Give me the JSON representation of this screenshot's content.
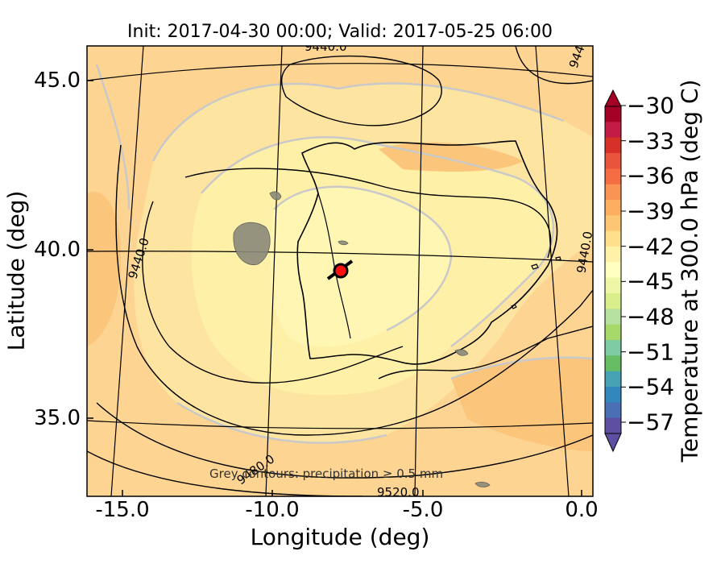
{
  "title": "Init: 2017-04-30 00:00; Valid: 2017-05-25 06:00",
  "xlabel": "Longitude (deg)",
  "ylabel": "Latitude (deg)",
  "x_ticks": [
    "-15.0",
    "-10.0",
    "-5.0",
    "0.0"
  ],
  "y_ticks": [
    "45.0",
    "40.0",
    "35.0"
  ],
  "colorbar": {
    "label": "Temperature at 300.0 hPa (deg C)",
    "ticks": [
      "−30",
      "−33",
      "−36",
      "−39",
      "−42",
      "−45",
      "−48",
      "−51",
      "−54",
      "−57"
    ],
    "colors": [
      "#a50026",
      "#c21c44",
      "#d73027",
      "#e8553b",
      "#f46d43",
      "#f99455",
      "#fdae61",
      "#fdc675",
      "#fee08b",
      "#fef1a8",
      "#ffffbf",
      "#eef7a6",
      "#d9ef8b",
      "#b6e0a0",
      "#a6d96a",
      "#7fcba4",
      "#66bd63",
      "#47a3b3",
      "#3288bd",
      "#4a6fb4",
      "#5e4fa2"
    ]
  },
  "annotation": "Grey contours: precipitation ≥ 0.5 mm",
  "contour_labels": {
    "top": "9440.0",
    "top_right_a": "944",
    "left": "9440.0",
    "right": "9440.0",
    "bottom_a": "9480.0",
    "bottom_b": "9520.0"
  },
  "marker": {
    "lon": -7.8,
    "lat": 39.3,
    "color": "#ff1010"
  },
  "map_colors": {
    "ocean": "#fdd491",
    "warm": "#fbc67c",
    "cool": "#fef0a6",
    "coolest": "#fff6b4",
    "gridline": "#000000"
  }
}
